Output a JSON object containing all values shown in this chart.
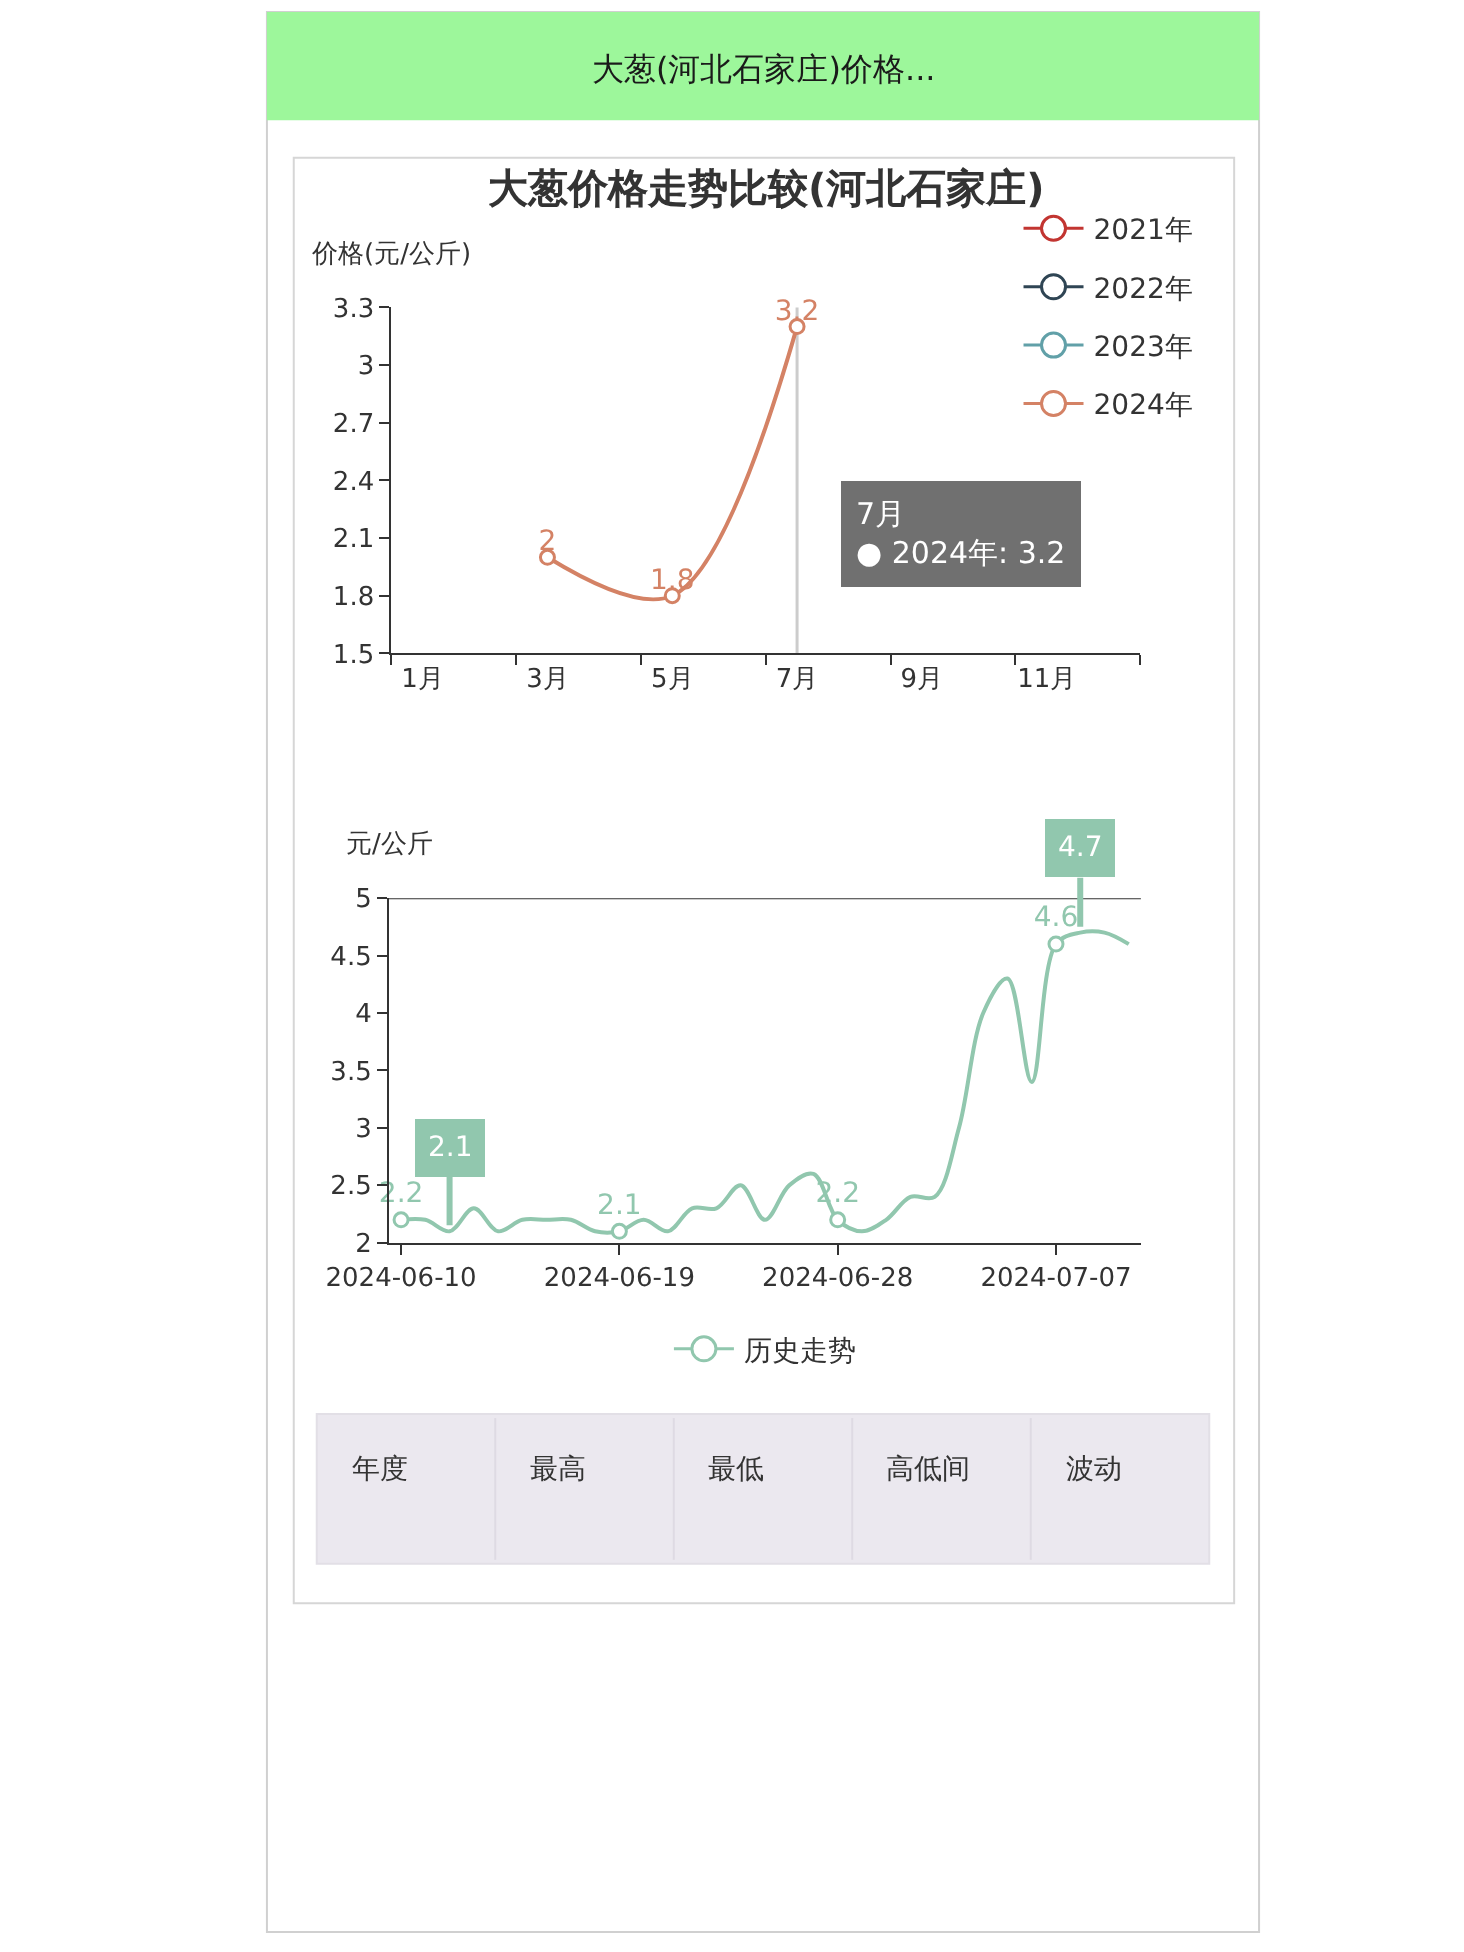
{
  "chart_data": [
    {
      "type": "other",
      "title": "大葱(河北石家庄)价格..."
    },
    {
      "type": "line",
      "title": "大葱价格走势比较(河北石家庄)",
      "ylabel": "价格(元/公斤)",
      "categories": [
        "1月",
        null,
        "3月",
        null,
        "5月",
        null,
        "7月",
        null,
        "9月",
        null,
        "11月",
        null
      ],
      "series": [
        {
          "name": "2021年",
          "color": "#c23531",
          "values": [
            null,
            null,
            null,
            null,
            null,
            null,
            null,
            null,
            null,
            null,
            null,
            null
          ]
        },
        {
          "name": "2022年",
          "color": "#2f4554",
          "values": [
            null,
            null,
            null,
            null,
            null,
            null,
            null,
            null,
            null,
            null,
            null,
            null
          ]
        },
        {
          "name": "2023年",
          "color": "#61a0a8",
          "values": [
            null,
            null,
            null,
            null,
            null,
            null,
            null,
            null,
            null,
            null,
            null,
            null
          ]
        },
        {
          "name": "2024年",
          "color": "#d48265",
          "values": [
            null,
            null,
            2,
            null,
            1.8,
            null,
            3.2,
            null,
            null,
            null,
            null,
            null
          ]
        }
      ],
      "ylim": [
        1.5,
        3.3
      ],
      "yticks": [
        1.5,
        1.8,
        2.1,
        2.4,
        2.7,
        3,
        3.3
      ],
      "data_labels": true,
      "marker": "circle",
      "legend": "top right",
      "ref_lines": [
        {
          "axis": "x",
          "value": "7月",
          "color": "#cccccc"
        }
      ],
      "annotations": [
        "7月\n● 2024年: 3.2"
      ]
    },
    {
      "type": "line",
      "ylabel": "元/公斤",
      "x": [
        "2024-06-10",
        "2024-06-11",
        "2024-06-12",
        "2024-06-13",
        "2024-06-14",
        "2024-06-15",
        "2024-06-16",
        "2024-06-17",
        "2024-06-18",
        "2024-06-19",
        "2024-06-20",
        "2024-06-21",
        "2024-06-22",
        "2024-06-23",
        "2024-06-24",
        "2024-06-25",
        "2024-06-26",
        "2024-06-27",
        "2024-06-28",
        "2024-06-29",
        "2024-06-30",
        "2024-07-01",
        "2024-07-02",
        "2024-07-03",
        "2024-07-04",
        "2024-07-05",
        "2024-07-06",
        "2024-07-07",
        "2024-07-08",
        "2024-07-09",
        "2024-07-10"
      ],
      "series": [
        {
          "name": "历史走势",
          "color": "#91c7ae",
          "values": [
            2.2,
            2.2,
            2.1,
            2.3,
            2.1,
            2.2,
            2.2,
            2.2,
            2.1,
            2.1,
            2.2,
            2.1,
            2.3,
            2.3,
            2.5,
            2.2,
            2.5,
            2.6,
            2.2,
            2.1,
            2.2,
            2.4,
            2.4,
            3.0,
            4.0,
            4.3,
            3.4,
            4.6,
            4.7,
            4.7,
            4.6
          ],
          "value_labels": [
            "2.2",
            null,
            null,
            null,
            null,
            null,
            null,
            null,
            null,
            "2.1",
            null,
            null,
            null,
            null,
            null,
            null,
            null,
            null,
            "2.2",
            null,
            null,
            null,
            null,
            null,
            null,
            null,
            null,
            "4.6",
            null,
            null,
            null
          ]
        }
      ],
      "xlim": [
        "2024-06-09T12:00",
        "2024-07-10T12:00"
      ],
      "xticks": [
        "2024-06-10",
        "2024-06-19",
        "2024-06-28",
        "2024-07-07"
      ],
      "ylim": [
        2,
        5
      ],
      "yticks": [
        2,
        2.5,
        3,
        3.5,
        4,
        4.5,
        5
      ],
      "legend": "bottom",
      "ref_lines": [
        {
          "axis": "y",
          "value": 5,
          "color": "#333333"
        }
      ],
      "annotations": [
        {
          "text": "2.1",
          "x": "2024-06-12",
          "y": 2.1
        },
        {
          "text": "4.7",
          "x": "2024-07-08",
          "y": 4.7
        }
      ]
    },
    {
      "type": "other",
      "annotations": [
        "年度",
        "最高",
        "最低",
        "高低间",
        "波动"
      ]
    }
  ]
}
